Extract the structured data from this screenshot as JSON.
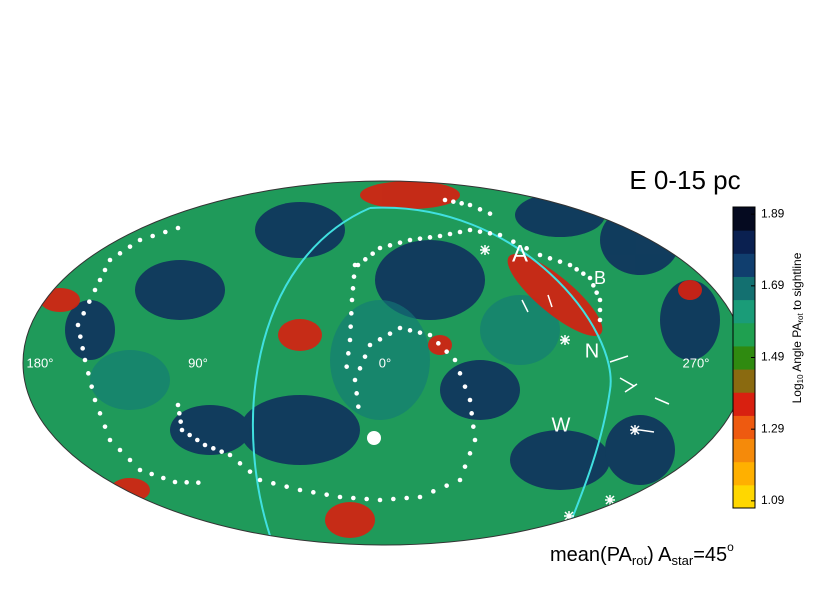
{
  "title": "E  0-15 pc",
  "region_labels": [
    "A",
    "B",
    "N",
    "W"
  ],
  "longitude_labels": [
    "180°",
    "90°",
    "0°",
    "270°"
  ],
  "colorbar": {
    "label_parts": [
      "Log",
      "10",
      " Angle PA",
      "rot",
      " to sightline"
    ],
    "lim": [
      1.07,
      1.91
    ],
    "ticks": [
      1.09,
      1.29,
      1.49,
      1.69,
      1.89
    ],
    "colors": [
      "#ffd700",
      "#ffb000",
      "#f58a0a",
      "#ee5a10",
      "#d82010",
      "#8a6a10",
      "#2f8a10",
      "#1fa050",
      "#1a9c78",
      "#137070",
      "#103e6e",
      "#0a2050",
      "#050a20"
    ]
  },
  "caption": [
    "mean(PA",
    "rot",
    ")  A",
    "star",
    "=45",
    "o"
  ]
}
